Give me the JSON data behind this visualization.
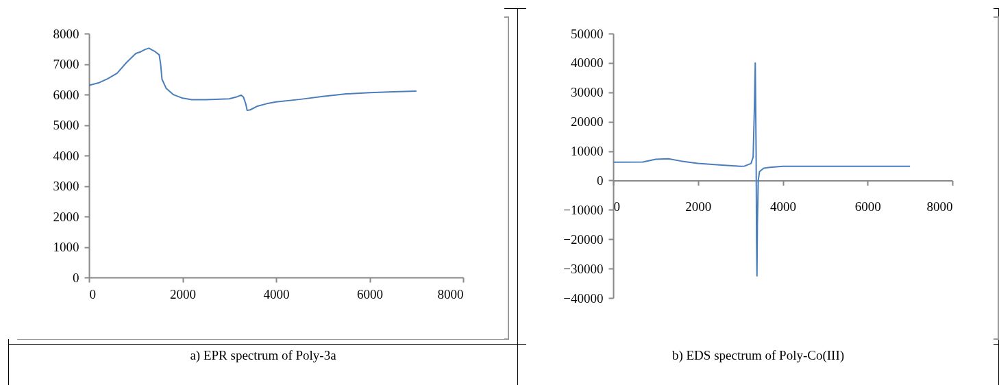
{
  "chart_data": [
    {
      "type": "line",
      "color": "#4a7ebb",
      "xlim": [
        0,
        8000
      ],
      "ylim": [
        0,
        8000
      ],
      "xticks": [
        0,
        2000,
        4000,
        6000,
        8000
      ],
      "yticks": [
        0,
        1000,
        2000,
        3000,
        4000,
        5000,
        6000,
        7000,
        8000
      ],
      "x": [
        0,
        200,
        400,
        600,
        800,
        1000,
        1100,
        1200,
        1280,
        1400,
        1500,
        1530,
        1560,
        1650,
        1800,
        2000,
        2200,
        2500,
        2800,
        3000,
        3150,
        3250,
        3300,
        3350,
        3380,
        3450,
        3600,
        3800,
        4000,
        4500,
        5000,
        5500,
        6000,
        6500,
        7000
      ],
      "values": [
        6300,
        6380,
        6520,
        6700,
        7050,
        7350,
        7400,
        7480,
        7520,
        7420,
        7300,
        7000,
        6500,
        6200,
        6000,
        5880,
        5830,
        5830,
        5850,
        5860,
        5920,
        5980,
        5920,
        5700,
        5480,
        5500,
        5620,
        5700,
        5760,
        5840,
        5940,
        6020,
        6060,
        6090,
        6110
      ],
      "annotations": [
        "a) EPR spectrum of Poly-3a"
      ]
    },
    {
      "type": "line",
      "color": "#4a7ebb",
      "xlim": [
        0,
        8000
      ],
      "ylim": [
        -40000,
        50000
      ],
      "xticks": [
        0,
        2000,
        4000,
        6000,
        8000
      ],
      "yticks": [
        -40000,
        -30000,
        -20000,
        -10000,
        0,
        10000,
        20000,
        30000,
        40000,
        50000
      ],
      "x": [
        0,
        700,
        1000,
        1300,
        1600,
        2000,
        2500,
        3000,
        3100,
        3250,
        3300,
        3330,
        3350,
        3370,
        3380,
        3390,
        3400,
        3420,
        3450,
        3550,
        3700,
        4000,
        7000
      ],
      "values": [
        6200,
        6300,
        7200,
        7400,
        6600,
        5800,
        5300,
        4800,
        4900,
        5800,
        8000,
        25000,
        40000,
        10000,
        -20000,
        -32500,
        -15000,
        0,
        3000,
        4200,
        4500,
        4800,
        4800
      ],
      "annotations": [
        "b) EDS spectrum of Poly-Co(III)"
      ]
    }
  ]
}
